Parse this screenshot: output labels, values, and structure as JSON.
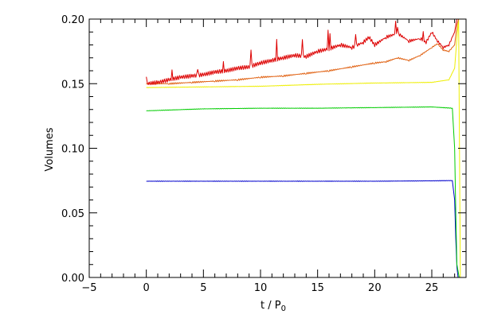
{
  "chart_data": {
    "type": "line",
    "title": "",
    "xlabel": "t / P",
    "xlabel_subscript": "0",
    "ylabel": "Volumes",
    "xlim": [
      -5,
      28
    ],
    "ylim": [
      0.0,
      0.2
    ],
    "grid": false,
    "x_ticks": [
      -5,
      0,
      5,
      10,
      15,
      20,
      25
    ],
    "x_tick_labels": [
      "−5",
      "0",
      "5",
      "10",
      "15",
      "20",
      "25"
    ],
    "y_ticks": [
      0.0,
      0.05,
      0.1,
      0.15,
      0.2
    ],
    "y_tick_labels": [
      "0.00",
      "0.05",
      "0.10",
      "0.15",
      "0.20"
    ],
    "series": [
      {
        "color": "#0000cc",
        "x": [
          0,
          5,
          10,
          15,
          20,
          25,
          26.8,
          27.0,
          27.1,
          27.2,
          27.3
        ],
        "y": [
          0.0745,
          0.0745,
          0.0745,
          0.0745,
          0.0745,
          0.0748,
          0.075,
          0.06,
          0.03,
          0.008,
          0.0
        ]
      },
      {
        "color": "#00cc00",
        "x": [
          0,
          5,
          10,
          15,
          20,
          25,
          26.8,
          27.0,
          27.1,
          27.2,
          27.4
        ],
        "y": [
          0.129,
          0.1305,
          0.131,
          0.131,
          0.1315,
          0.132,
          0.131,
          0.1,
          0.05,
          0.01,
          0.0
        ]
      },
      {
        "color": "#eeee00",
        "x": [
          0,
          5,
          10,
          15,
          20,
          25,
          26.5,
          27.0,
          27.2,
          27.35,
          27.5
        ],
        "y": [
          0.147,
          0.1475,
          0.148,
          0.1495,
          0.1505,
          0.151,
          0.153,
          0.162,
          0.185,
          0.2,
          0.0
        ]
      },
      {
        "color": "#e06010",
        "x": [
          0,
          2,
          4,
          6,
          8,
          10,
          12,
          14,
          16,
          18,
          20,
          21,
          22,
          23,
          24,
          25,
          25.5,
          26,
          26.5,
          27.0,
          27.2,
          27.35
        ],
        "y": [
          0.15,
          0.15,
          0.151,
          0.152,
          0.153,
          0.155,
          0.156,
          0.158,
          0.16,
          0.163,
          0.166,
          0.167,
          0.17,
          0.168,
          0.172,
          0.178,
          0.181,
          0.176,
          0.175,
          0.18,
          0.195,
          0.2
        ]
      },
      {
        "color": "#dd0000",
        "x": [
          0,
          1,
          2,
          3,
          4,
          5,
          6,
          7,
          8,
          9,
          10,
          11,
          12,
          13,
          14,
          15,
          16,
          17,
          18,
          19,
          19.5,
          20,
          21,
          22,
          23,
          24,
          24.5,
          25,
          25.5,
          26,
          26.5,
          27.0,
          27.2
        ],
        "y": [
          0.15,
          0.151,
          0.153,
          0.155,
          0.156,
          0.157,
          0.159,
          0.16,
          0.162,
          0.163,
          0.166,
          0.168,
          0.17,
          0.172,
          0.171,
          0.175,
          0.177,
          0.18,
          0.178,
          0.182,
          0.186,
          0.18,
          0.186,
          0.189,
          0.183,
          0.185,
          0.182,
          0.19,
          0.183,
          0.178,
          0.18,
          0.19,
          0.2
        ]
      }
    ]
  }
}
